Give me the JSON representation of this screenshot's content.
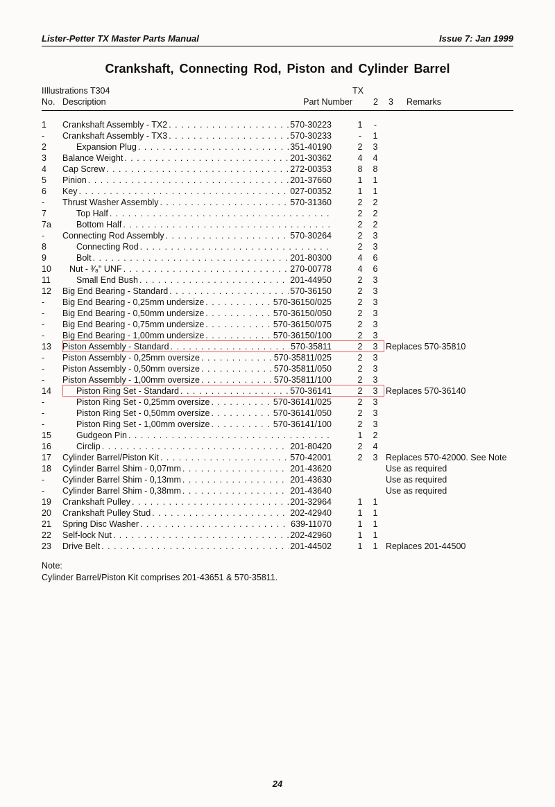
{
  "header": {
    "left": "Lister-Petter TX Master Parts Manual",
    "right": "Issue 7: Jan 1999"
  },
  "title": "Crankshaft, Connecting Rod,   Piston and Cylinder Barrel",
  "table_head": {
    "illus": "IIllustrations T304",
    "no": "No.",
    "desc": "Description",
    "pn": "Part Number",
    "tx": "TX",
    "tx2": "2",
    "tx3": "3",
    "rem": "Remarks"
  },
  "page_number": "24",
  "note_label": "Note:",
  "note_text": "Cylinder Barrel/Piston Kit comprises  201-43651  &  570-35811.",
  "highlight": {
    "color": "#e06060",
    "box1": {
      "top_row": 18,
      "height_rows": 1
    },
    "box2": {
      "top_row": 22,
      "height_rows": 1
    }
  },
  "rows": [
    {
      "no": "1",
      "indent": 0,
      "desc": "Crankshaft Assembly - TX2",
      "pn": "570-30223",
      "tx2": "1",
      "tx3": "-",
      "rem": ""
    },
    {
      "no": "-",
      "indent": 0,
      "desc": "Crankshaft Assembly - TX3",
      "pn": "570-30233",
      "tx2": "-",
      "tx3": "1",
      "rem": ""
    },
    {
      "no": "2",
      "indent": 2,
      "desc": "Expansion Plug",
      "pn": "351-40190",
      "tx2": "2",
      "tx3": "3",
      "rem": ""
    },
    {
      "no": "3",
      "indent": 0,
      "desc": "Balance Weight",
      "pn": "201-30362",
      "tx2": "4",
      "tx3": "4",
      "rem": ""
    },
    {
      "no": "4",
      "indent": 0,
      "desc": "Cap Screw",
      "pn": "272-00353",
      "tx2": "8",
      "tx3": "8",
      "rem": ""
    },
    {
      "no": "5",
      "indent": 0,
      "desc": "Pinion",
      "pn": "201-37660",
      "tx2": "1",
      "tx3": "1",
      "rem": ""
    },
    {
      "no": "6",
      "indent": 0,
      "desc": "Key",
      "pn": "027-00352",
      "tx2": "1",
      "tx3": "1",
      "rem": ""
    },
    {
      "no": "-",
      "indent": 0,
      "desc": "Thrust Washer Assembly",
      "pn": "570-31360",
      "tx2": "2",
      "tx3": "2",
      "rem": ""
    },
    {
      "no": "7",
      "indent": 2,
      "desc": "Top Half",
      "pn": "",
      "tx2": "2",
      "tx3": "2",
      "rem": ""
    },
    {
      "no": "7a",
      "indent": 2,
      "desc": "Bottom Half",
      "pn": "",
      "tx2": "2",
      "tx3": "2",
      "rem": ""
    },
    {
      "no": "-",
      "indent": 0,
      "desc": "Connecting Rod Assembly",
      "pn": "570-30264",
      "tx2": "2",
      "tx3": "3",
      "rem": ""
    },
    {
      "no": "8",
      "indent": 2,
      "desc": "Connecting Rod",
      "pn": "",
      "tx2": "2",
      "tx3": "3",
      "rem": ""
    },
    {
      "no": "9",
      "indent": 2,
      "desc": "Bolt",
      "pn": "201-80300",
      "tx2": "4",
      "tx3": "6",
      "rem": ""
    },
    {
      "no": "10",
      "indent": 1,
      "desc": "Nut - ³⁄₈\" UNF",
      "pn": "270-00778",
      "tx2": "4",
      "tx3": "6",
      "rem": ""
    },
    {
      "no": "11",
      "indent": 2,
      "desc": "Small End Bush",
      "pn": "201-44950",
      "tx2": "2",
      "tx3": "3",
      "rem": ""
    },
    {
      "no": "12",
      "indent": 0,
      "desc": "Big End Bearing - Standard",
      "pn": "570-36150",
      "tx2": "2",
      "tx3": "3",
      "rem": ""
    },
    {
      "no": "-",
      "indent": 0,
      "desc": "Big End Bearing - 0,25mm undersize",
      "pn": "570-36150/025",
      "tx2": "2",
      "tx3": "3",
      "rem": ""
    },
    {
      "no": "-",
      "indent": 0,
      "desc": "Big End Bearing - 0,50mm undersize",
      "pn": "570-36150/050",
      "tx2": "2",
      "tx3": "3",
      "rem": ""
    },
    {
      "no": "-",
      "indent": 0,
      "desc": "Big End Bearing - 0,75mm undersize",
      "pn": "570-36150/075",
      "tx2": "2",
      "tx3": "3",
      "rem": ""
    },
    {
      "no": "-",
      "indent": 0,
      "desc": "Big End Bearing - 1,00mm undersize",
      "pn": "570-36150/100",
      "tx2": "2",
      "tx3": "3",
      "rem": ""
    },
    {
      "no": "13",
      "indent": 0,
      "desc": "Piston Assembly - Standard",
      "pn": "570-35811",
      "tx2": "2",
      "tx3": "3",
      "rem": "Replaces 570-35810"
    },
    {
      "no": "-",
      "indent": 0,
      "desc": "Piston Assembly - 0,25mm oversize",
      "pn": "570-35811/025",
      "tx2": "2",
      "tx3": "3",
      "rem": ""
    },
    {
      "no": "-",
      "indent": 0,
      "desc": "Piston Assembly - 0,50mm oversize",
      "pn": "570-35811/050",
      "tx2": "2",
      "tx3": "3",
      "rem": ""
    },
    {
      "no": "-",
      "indent": 0,
      "desc": "Piston Assembly - 1,00mm oversize",
      "pn": "570-35811/100",
      "tx2": "2",
      "tx3": "3",
      "rem": ""
    },
    {
      "no": "14",
      "indent": 2,
      "desc": "Piston Ring Set - Standard",
      "pn": "570-36141",
      "tx2": "2",
      "tx3": "3",
      "rem": "Replaces 570-36140"
    },
    {
      "no": "-",
      "indent": 2,
      "desc": "Piston Ring Set - 0,25mm oversize",
      "pn": "570-36141/025",
      "tx2": "2",
      "tx3": "3",
      "rem": ""
    },
    {
      "no": "-",
      "indent": 2,
      "desc": "Piston Ring Set - 0,50mm oversize",
      "pn": "570-36141/050",
      "tx2": "2",
      "tx3": "3",
      "rem": ""
    },
    {
      "no": "-",
      "indent": 2,
      "desc": "Piston Ring Set - 1,00mm oversize",
      "pn": "570-36141/100",
      "tx2": "2",
      "tx3": "3",
      "rem": ""
    },
    {
      "no": "15",
      "indent": 2,
      "desc": "Gudgeon Pin",
      "pn": "",
      "tx2": "1",
      "tx3": "2",
      "rem": ""
    },
    {
      "no": "16",
      "indent": 2,
      "desc": "Circlip",
      "pn": "201-80420",
      "tx2": "2",
      "tx3": "4",
      "rem": ""
    },
    {
      "no": "17",
      "indent": 0,
      "desc": "Cylinder Barrel/Piston Kit",
      "pn": "570-42001",
      "tx2": "2",
      "tx3": "3",
      "rem": "Replaces 570-42000. See Note"
    },
    {
      "no": "18",
      "indent": 0,
      "desc": "Cylinder Barrel Shim - 0,07mm",
      "pn": "201-43620",
      "tx2": "",
      "tx3": "",
      "rem": "Use as required"
    },
    {
      "no": "-",
      "indent": 0,
      "desc": "Cylinder Barrel Shim - 0,13mm",
      "pn": "201-43630",
      "tx2": "",
      "tx3": "",
      "rem": "Use as required"
    },
    {
      "no": "-",
      "indent": 0,
      "desc": "Cylinder Barrel Shim - 0,38mm",
      "pn": "201-43640",
      "tx2": "",
      "tx3": "",
      "rem": "Use as required"
    },
    {
      "no": "19",
      "indent": 0,
      "desc": "Crankshaft Pulley",
      "pn": "201-32964",
      "tx2": "1",
      "tx3": "1",
      "rem": ""
    },
    {
      "no": "20",
      "indent": 0,
      "desc": "Crankshaft Pulley Stud",
      "pn": "202-42940",
      "tx2": "1",
      "tx3": "1",
      "rem": ""
    },
    {
      "no": "21",
      "indent": 0,
      "desc": "Spring Disc Washer",
      "pn": "639-11070",
      "tx2": "1",
      "tx3": "1",
      "rem": ""
    },
    {
      "no": "22",
      "indent": 0,
      "desc": "Self-lock Nut",
      "pn": "202-42960",
      "tx2": "1",
      "tx3": "1",
      "rem": ""
    },
    {
      "no": "23",
      "indent": 0,
      "desc": "Drive Belt",
      "pn": "201-44502",
      "tx2": "1",
      "tx3": "1",
      "rem": "Replaces 201-44500"
    }
  ]
}
